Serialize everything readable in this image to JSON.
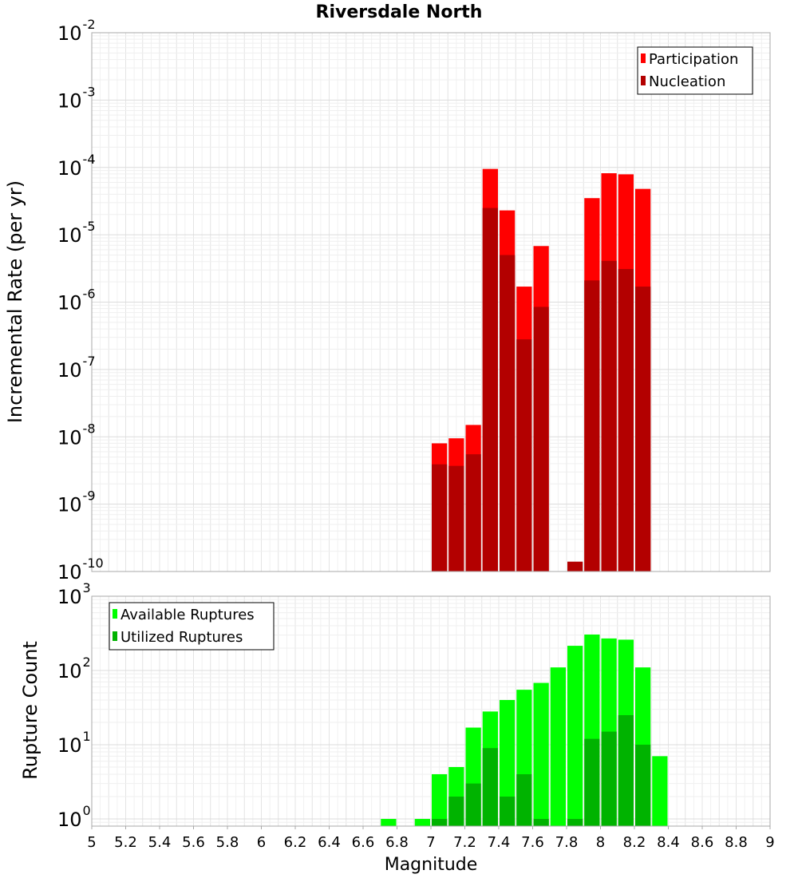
{
  "chart_data": [
    {
      "type": "bar",
      "title": "Riversdale North",
      "ylabel": "Incremental Rate (per yr)",
      "xlabel": "",
      "xlim": [
        5,
        9
      ],
      "ylim": [
        1e-10,
        0.01
      ],
      "yscale": "log",
      "yticks": [
        {
          "base": "10",
          "exp": "-10"
        },
        {
          "base": "10",
          "exp": "-9"
        },
        {
          "base": "10",
          "exp": "-8"
        },
        {
          "base": "10",
          "exp": "-7"
        },
        {
          "base": "10",
          "exp": "-6"
        },
        {
          "base": "10",
          "exp": "-5"
        },
        {
          "base": "10",
          "exp": "-4"
        },
        {
          "base": "10",
          "exp": "-3"
        },
        {
          "base": "10",
          "exp": "-2"
        }
      ],
      "grid": true,
      "legend_position": "top-right",
      "x": [
        7.05,
        7.15,
        7.25,
        7.35,
        7.45,
        7.55,
        7.65,
        7.85,
        7.95,
        8.05,
        8.15,
        8.25
      ],
      "series": [
        {
          "name": "Participation",
          "color": "#ff0000",
          "values": [
            8e-09,
            9.5e-09,
            1.5e-08,
            9.5e-05,
            2.3e-05,
            1.7e-06,
            6.8e-06,
            null,
            3.5e-05,
            8.2e-05,
            7.9e-05,
            4.8e-05
          ]
        },
        {
          "name": "Nucleation",
          "color": "#b30000",
          "values": [
            3.9e-09,
            3.7e-09,
            5.5e-09,
            2.5e-05,
            5e-06,
            2.8e-07,
            8.5e-07,
            1.4e-10,
            2.1e-06,
            4.1e-06,
            3.1e-06,
            1.7e-06
          ]
        }
      ]
    },
    {
      "type": "bar",
      "title": "",
      "ylabel": "Rupture Count",
      "xlabel": "Magnitude",
      "xlim": [
        5,
        9
      ],
      "ylim": [
        0.8,
        1000
      ],
      "yscale": "log",
      "yticks": [
        {
          "base": "10",
          "exp": "0"
        },
        {
          "base": "10",
          "exp": "1"
        },
        {
          "base": "10",
          "exp": "2"
        },
        {
          "base": "10",
          "exp": "3"
        }
      ],
      "xticks": [
        "5",
        "5.2",
        "5.4",
        "5.6",
        "5.8",
        "6",
        "6.2",
        "6.4",
        "6.6",
        "6.8",
        "7",
        "7.2",
        "7.4",
        "7.6",
        "7.8",
        "8",
        "8.2",
        "8.4",
        "8.6",
        "8.8",
        "9"
      ],
      "grid": true,
      "legend_position": "top-left",
      "x": [
        6.75,
        6.95,
        7.05,
        7.15,
        7.25,
        7.35,
        7.45,
        7.55,
        7.65,
        7.75,
        7.85,
        7.95,
        8.05,
        8.15,
        8.25,
        8.35
      ],
      "series": [
        {
          "name": "Available Ruptures",
          "color": "#00ff00",
          "values": [
            1,
            1,
            4,
            5,
            17,
            28,
            40,
            55,
            68,
            110,
            215,
            305,
            270,
            260,
            110,
            7
          ]
        },
        {
          "name": "Utilized Ruptures",
          "color": "#00b300",
          "values": [
            null,
            null,
            1,
            2,
            3,
            9,
            2,
            4,
            1,
            null,
            1,
            12,
            15,
            25,
            10,
            null
          ]
        }
      ]
    }
  ]
}
